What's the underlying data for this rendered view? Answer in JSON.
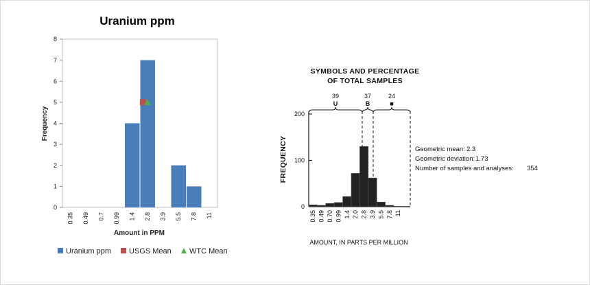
{
  "chart_data": [
    {
      "type": "bar",
      "title": "Uranium ppm",
      "xlabel": "Amount in PPM",
      "ylabel": "Frequency",
      "categories": [
        "0.35",
        "0.49",
        "0.7",
        "0.99",
        "1.4",
        "2.8",
        "3.9",
        "5.5",
        "7.8",
        "11"
      ],
      "ylim": [
        0,
        8
      ],
      "yticks": [
        "0",
        "1",
        "2",
        "3",
        "4",
        "5",
        "6",
        "7",
        "8"
      ],
      "grid": false,
      "legend_position": "bottom",
      "series": [
        {
          "name": "Uranium ppm",
          "values": [
            0,
            0,
            0,
            0,
            4,
            7,
            0,
            2,
            1,
            0
          ],
          "color": "#4a7ebb"
        }
      ],
      "markers": [
        {
          "name": "USGS Mean",
          "x": 2.3,
          "y": 5,
          "shape": "square",
          "color": "#c0504d"
        },
        {
          "name": "WTC Mean",
          "x": 2.8,
          "y": 5,
          "shape": "triangle",
          "color": "#4cb04c"
        }
      ]
    },
    {
      "type": "bar",
      "title": "SYMBOLS AND PERCENTAGE OF TOTAL SAMPLES",
      "title_lines": [
        "SYMBOLS AND PERCENTAGE",
        "OF TOTAL SAMPLES"
      ],
      "xlabel": "AMOUNT, IN PARTS PER MILLION",
      "ylabel": "FREQUENCY",
      "categories": [
        "0.35",
        "0.49",
        "0.70",
        "0.99",
        "1.4",
        "2.0",
        "2.8",
        "3.9",
        "5.5",
        "7.8",
        "11"
      ],
      "values": [
        4,
        3,
        7,
        9,
        22,
        72,
        130,
        62,
        10,
        3,
        1
      ],
      "ylim": [
        0,
        200
      ],
      "yticks": [
        "0",
        "100",
        "200"
      ],
      "color": "#222222",
      "percentages": [
        {
          "label": "39",
          "symbol": "U"
        },
        {
          "label": "37",
          "symbol": "B"
        },
        {
          "label": "24",
          "symbol": "■"
        }
      ],
      "stats": [
        {
          "label": "Geometric mean:",
          "value": "2.3"
        },
        {
          "label": "Geometric deviation:",
          "value": "1.73"
        },
        {
          "label": "Number of samples and analyses:",
          "value": "354"
        }
      ]
    }
  ]
}
